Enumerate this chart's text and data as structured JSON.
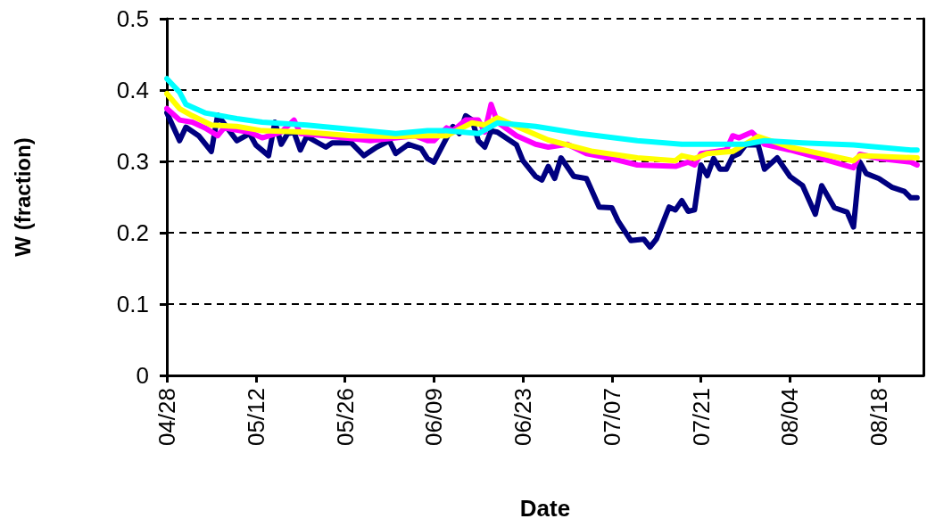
{
  "chart_data": {
    "type": "line",
    "xlabel": "Date",
    "ylabel": "W (fraction)",
    "xlim": [
      "--04-28",
      "--08-25"
    ],
    "xticks": [
      {
        "value": "--04-28",
        "label": "04/28"
      },
      {
        "value": "--05-12",
        "label": "05/12"
      },
      {
        "value": "--05-26",
        "label": "05/26"
      },
      {
        "value": "--06-09",
        "label": "06/09"
      },
      {
        "value": "--06-23",
        "label": "06/23"
      },
      {
        "value": "--07-07",
        "label": "07/07"
      },
      {
        "value": "--07-21",
        "label": "07/21"
      },
      {
        "value": "--08-04",
        "label": "08/04"
      },
      {
        "value": "--08-18",
        "label": "08/18"
      }
    ],
    "ylim": [
      0,
      0.5
    ],
    "yticks": [
      0,
      0.1,
      0.2,
      0.3,
      0.4,
      0.5
    ],
    "grid": "y",
    "marker": "none",
    "line_style": "solid",
    "series": [
      {
        "color": "#000080",
        "x": [
          "--04-28",
          "--04-30",
          "--05-01",
          "--05-03",
          "--05-05",
          "--05-06",
          "--05-08",
          "--05-09",
          "--05-11",
          "--05-12",
          "--05-14",
          "--05-15",
          "--05-16",
          "--05-17",
          "--05-18",
          "--05-19",
          "--05-20",
          "--05-23",
          "--05-24",
          "--05-27",
          "--05-29",
          "--05-31",
          "--06-02",
          "--06-03",
          "--06-05",
          "--06-07",
          "--06-08",
          "--06-09",
          "--06-11",
          "--06-12",
          "--06-13",
          "--06-14",
          "--06-15",
          "--06-16",
          "--06-17",
          "--06-18",
          "--06-19",
          "--06-20",
          "--06-22",
          "--06-23",
          "--06-25",
          "--06-26",
          "--06-27",
          "--06-28",
          "--06-29",
          "--07-01",
          "--07-03",
          "--07-05",
          "--07-07",
          "--07-08",
          "--07-10",
          "--07-12",
          "--07-13",
          "--07-14",
          "--07-16",
          "--07-17",
          "--07-18",
          "--07-19",
          "--07-20",
          "--07-21",
          "--07-22",
          "--07-23",
          "--07-24",
          "--07-25",
          "--07-26",
          "--07-27",
          "--07-28",
          "--07-30",
          "--07-31",
          "--08-02",
          "--08-04",
          "--08-06",
          "--08-08",
          "--08-09",
          "--08-11",
          "--08-13",
          "--08-14",
          "--08-15",
          "--08-16",
          "--08-18",
          "--08-20",
          "--08-22",
          "--08-23",
          "--08-24"
        ],
        "values": [
          0.368,
          0.329,
          0.348,
          0.336,
          0.314,
          0.365,
          0.341,
          0.329,
          0.339,
          0.323,
          0.308,
          0.355,
          0.324,
          0.339,
          0.341,
          0.316,
          0.335,
          0.32,
          0.326,
          0.326,
          0.308,
          0.32,
          0.329,
          0.311,
          0.324,
          0.318,
          0.304,
          0.299,
          0.333,
          0.349,
          0.339,
          0.364,
          0.358,
          0.329,
          0.32,
          0.343,
          0.341,
          0.335,
          0.323,
          0.301,
          0.279,
          0.274,
          0.293,
          0.276,
          0.305,
          0.279,
          0.276,
          0.236,
          0.235,
          0.216,
          0.189,
          0.191,
          0.18,
          0.191,
          0.236,
          0.232,
          0.245,
          0.23,
          0.232,
          0.295,
          0.28,
          0.304,
          0.289,
          0.289,
          0.307,
          0.311,
          0.323,
          0.323,
          0.289,
          0.305,
          0.279,
          0.266,
          0.226,
          0.266,
          0.235,
          0.229,
          0.208,
          0.299,
          0.283,
          0.276,
          0.264,
          0.258,
          0.249,
          0.249
        ]
      },
      {
        "color": "#ff00ff",
        "x": [
          "--04-28",
          "--04-30",
          "--05-02",
          "--05-04",
          "--05-06",
          "--05-07",
          "--05-11",
          "--05-13",
          "--05-16",
          "--05-18",
          "--05-19",
          "--05-23",
          "--05-30",
          "--06-06",
          "--06-08",
          "--06-09",
          "--06-11",
          "--06-12",
          "--06-14",
          "--06-16",
          "--06-17",
          "--06-18",
          "--06-19",
          "--06-22",
          "--06-25",
          "--06-27",
          "--06-30",
          "--07-03",
          "--07-07",
          "--07-11",
          "--07-17",
          "--07-19",
          "--07-20",
          "--07-21",
          "--07-25",
          "--07-26",
          "--07-27",
          "--07-29",
          "--07-31",
          "--08-04",
          "--08-09",
          "--08-14",
          "--08-15",
          "--08-18",
          "--08-23",
          "--08-24"
        ],
        "values": [
          0.374,
          0.358,
          0.355,
          0.347,
          0.336,
          0.347,
          0.341,
          0.333,
          0.341,
          0.358,
          0.339,
          0.336,
          0.329,
          0.336,
          0.329,
          0.329,
          0.347,
          0.343,
          0.358,
          0.358,
          0.341,
          0.38,
          0.355,
          0.336,
          0.324,
          0.32,
          0.324,
          0.311,
          0.304,
          0.295,
          0.293,
          0.299,
          0.295,
          0.311,
          0.316,
          0.336,
          0.333,
          0.341,
          0.324,
          0.316,
          0.304,
          0.291,
          0.31,
          0.304,
          0.299,
          0.295
        ]
      },
      {
        "color": "#ffff00",
        "x": [
          "--04-28",
          "--04-30",
          "--05-02",
          "--05-05",
          "--05-09",
          "--05-13",
          "--05-20",
          "--05-27",
          "--06-03",
          "--06-08",
          "--06-11",
          "--06-15",
          "--06-17",
          "--06-19",
          "--06-22",
          "--06-27",
          "--07-04",
          "--07-11",
          "--07-17",
          "--07-18",
          "--07-20",
          "--07-22",
          "--07-26",
          "--07-30",
          "--08-04",
          "--08-14",
          "--08-15",
          "--08-24"
        ],
        "values": [
          0.395,
          0.374,
          0.364,
          0.351,
          0.349,
          0.343,
          0.341,
          0.336,
          0.335,
          0.336,
          0.336,
          0.354,
          0.351,
          0.361,
          0.349,
          0.33,
          0.314,
          0.305,
          0.301,
          0.308,
          0.304,
          0.311,
          0.314,
          0.335,
          0.32,
          0.301,
          0.308,
          0.305
        ]
      },
      {
        "color": "#00ffff",
        "x": [
          "--04-28",
          "--04-30",
          "--05-01",
          "--05-04",
          "--05-09",
          "--05-13",
          "--05-20",
          "--05-27",
          "--06-03",
          "--06-08",
          "--06-11",
          "--06-16",
          "--06-19",
          "--06-25",
          "--07-02",
          "--07-11",
          "--07-18",
          "--07-28",
          "--07-31",
          "--08-06",
          "--08-14",
          "--08-23",
          "--08-24"
        ],
        "values": [
          0.416,
          0.397,
          0.38,
          0.368,
          0.36,
          0.355,
          0.351,
          0.345,
          0.339,
          0.343,
          0.343,
          0.339,
          0.354,
          0.349,
          0.339,
          0.329,
          0.324,
          0.324,
          0.329,
          0.326,
          0.323,
          0.316,
          0.316
        ]
      }
    ]
  }
}
